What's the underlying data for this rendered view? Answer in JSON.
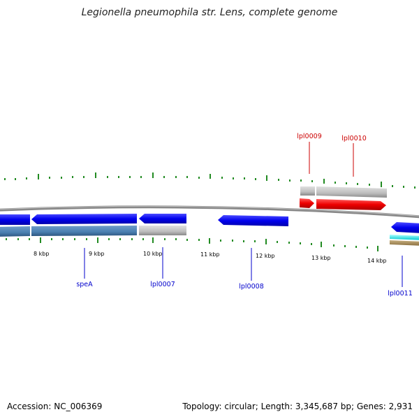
{
  "title": "Legionella pneumophila str. Lens, complete genome",
  "footer": {
    "accession": "Accession: NC_006369",
    "summary": "Topology: circular; Length: 3,345,687 bp; Genes: 2,931"
  },
  "scale_labels": [
    "8 kbp",
    "9 kbp",
    "10 kbp",
    "11 kbp",
    "12 kbp",
    "13 kbp",
    "14 kbp"
  ],
  "genes": [
    {
      "name": "speA",
      "color": "#0000cc"
    },
    {
      "name": "lpl0007",
      "color": "#0000cc"
    },
    {
      "name": "lpl0008",
      "color": "#0000cc"
    },
    {
      "name": "lpl0009",
      "color": "#cc0000"
    },
    {
      "name": "lpl0010",
      "color": "#cc0000"
    },
    {
      "name": "lpl0011",
      "color": "#0000cc"
    }
  ],
  "colors": {
    "forward_gene": "#ee0000",
    "reverse_gene": "#0000ee",
    "backbone": "#888888",
    "cds_light": "#bbbbbb",
    "cds_blue": "#4a7fb0",
    "ticks": "#228b22",
    "cyan_feature": "#00e5ee",
    "tan_feature": "#a89060"
  }
}
